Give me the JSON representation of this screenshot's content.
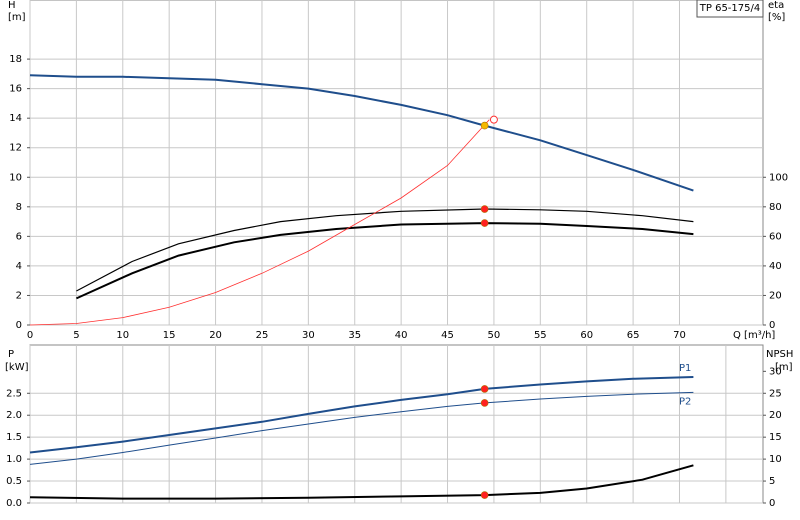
{
  "chart_data": [
    {
      "type": "line",
      "title": "TP 65-175/4",
      "y_label": "H",
      "y_unit": "[m]",
      "y2_label": "eta",
      "y2_unit": "[%]",
      "x_label": "Q [m³/h]",
      "xlim": [
        0,
        79
      ],
      "xticks": [
        0,
        5,
        10,
        15,
        20,
        25,
        30,
        35,
        40,
        45,
        50,
        55,
        60,
        65,
        70
      ],
      "ylim": [
        0,
        22
      ],
      "yticks": [
        0,
        2,
        4,
        6,
        8,
        10,
        12,
        14,
        16,
        18
      ],
      "y2lim": [
        0,
        220
      ],
      "y2ticks": [
        0,
        20,
        40,
        60,
        80,
        100
      ],
      "grid": true,
      "show_xtick_labels": true,
      "series": [
        {
          "color": "#1f4e8c",
          "width": 2,
          "x": [
            0,
            5,
            10,
            15,
            20,
            25,
            30,
            35,
            40,
            45,
            49,
            55,
            60,
            65,
            71.5
          ],
          "values": [
            16.9,
            16.8,
            16.8,
            16.7,
            16.6,
            16.3,
            16.0,
            15.5,
            14.9,
            14.2,
            13.5,
            12.5,
            11.5,
            10.5,
            9.1
          ]
        },
        {
          "color": "#000000",
          "width": 1.2,
          "axis": "y2",
          "x": [
            5,
            11,
            16,
            22,
            27,
            33,
            40,
            49,
            55,
            60,
            66,
            71.5
          ],
          "values": [
            23,
            43,
            55,
            64,
            70,
            74,
            77,
            78.5,
            78,
            77,
            74,
            70
          ]
        },
        {
          "color": "#000000",
          "width": 2,
          "axis": "y2",
          "x": [
            5,
            11,
            16,
            22,
            27,
            33,
            40,
            49,
            55,
            60,
            66,
            71.5
          ],
          "values": [
            18,
            35,
            47,
            56,
            61,
            65,
            68,
            69,
            68.5,
            67,
            65,
            61.5
          ]
        },
        {
          "color": "#ff3030",
          "width": 0.8,
          "x": [
            0,
            5,
            10,
            15,
            20,
            25,
            30,
            35,
            40,
            45,
            49.5
          ],
          "values": [
            0,
            0.1,
            0.5,
            1.2,
            2.2,
            3.5,
            5.0,
            6.8,
            8.6,
            10.8,
            13.9
          ]
        },
        {
          "style": "marker",
          "hollow": true,
          "color": "#ff3030",
          "x": [
            50
          ],
          "values": [
            13.9
          ]
        },
        {
          "style": "marker",
          "color": "#f5b800",
          "x": [
            49
          ],
          "values": [
            13.5
          ]
        },
        {
          "style": "marker",
          "color": "#ff2020",
          "axis": "y2",
          "x": [
            49,
            49
          ],
          "values": [
            78.5,
            69
          ]
        }
      ]
    },
    {
      "type": "line",
      "y_label": "P",
      "y_unit": "[kW]",
      "y2_label": "NPSH",
      "y2_unit": "[m]",
      "xlim": [
        0,
        79
      ],
      "xticks": [
        0,
        5,
        10,
        15,
        20,
        25,
        30,
        35,
        40,
        45,
        50,
        55,
        60,
        65,
        70,
        75
      ],
      "ylim": [
        0,
        3.6
      ],
      "yticks": [
        {
          "value": 0,
          "label": "0.0"
        },
        0.5,
        {
          "value": 1,
          "label": "1.0"
        },
        1.5,
        {
          "value": 2,
          "label": "2.0"
        },
        2.5
      ],
      "y2lim": [
        0,
        36
      ],
      "y2ticks": [
        0,
        5,
        10,
        15,
        20,
        25,
        30
      ],
      "grid": true,
      "show_xtick_labels": false,
      "series": [
        {
          "name": "P1",
          "color": "#1f4e8c",
          "width": 2,
          "x": [
            0,
            5,
            10,
            15,
            20,
            25,
            30,
            35,
            40,
            45,
            49,
            55,
            60,
            65,
            71.5
          ],
          "values": [
            1.15,
            1.27,
            1.4,
            1.55,
            1.7,
            1.85,
            2.03,
            2.2,
            2.35,
            2.48,
            2.6,
            2.7,
            2.77,
            2.83,
            2.87
          ]
        },
        {
          "name": "P2",
          "color": "#1f4e8c",
          "width": 1,
          "x": [
            0,
            5,
            10,
            15,
            20,
            25,
            30,
            35,
            40,
            45,
            49,
            55,
            60,
            65,
            71.5
          ],
          "values": [
            0.88,
            1.0,
            1.15,
            1.32,
            1.48,
            1.65,
            1.8,
            1.95,
            2.08,
            2.2,
            2.28,
            2.37,
            2.43,
            2.48,
            2.52
          ]
        },
        {
          "color": "#000000",
          "width": 2,
          "axis": "y2",
          "x": [
            0,
            10,
            20,
            30,
            40,
            49,
            55,
            60,
            66,
            71.5
          ],
          "values": [
            1.3,
            1.0,
            1.0,
            1.2,
            1.5,
            1.8,
            2.3,
            3.3,
            5.3,
            8.6
          ]
        },
        {
          "style": "marker",
          "color": "#ff2020",
          "x": [
            49,
            49
          ],
          "values": [
            2.6,
            2.28
          ]
        },
        {
          "style": "marker",
          "color": "#ff2020",
          "axis": "y2",
          "x": [
            49
          ],
          "values": [
            1.8
          ]
        }
      ]
    }
  ]
}
